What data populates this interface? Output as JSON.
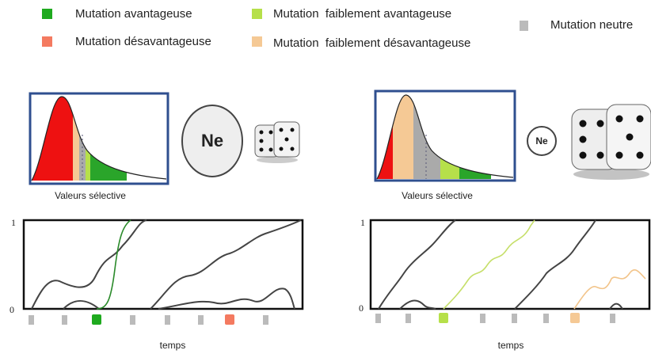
{
  "legend": [
    {
      "label": "Mutation avantageuse"
    },
    {
      "label": "Mutation désavantageuse"
    },
    {
      "label": "Mutation  faiblement avantageuse"
    },
    {
      "label": "Mutation  faiblement désavantageuse"
    },
    {
      "label": "Mutation neutre"
    }
  ],
  "panels": [
    {
      "distribution_label": "Valeurs sélective",
      "ne": "Ne",
      "y_top": 1,
      "y_bottom": 0,
      "x_label": "temps"
    },
    {
      "distribution_label": "Valeurs sélective",
      "ne": "Ne",
      "y_top": 1,
      "y_bottom": 0,
      "x_label": "temps"
    }
  ]
}
